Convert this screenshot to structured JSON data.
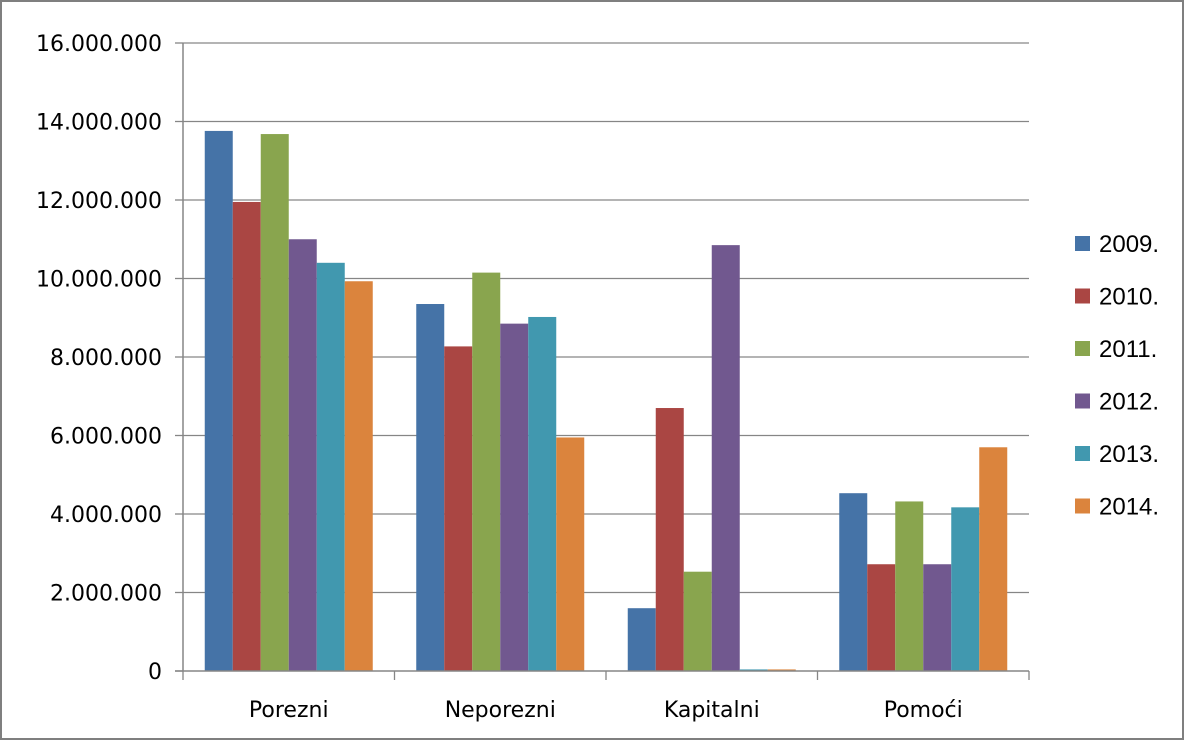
{
  "chart_data": {
    "type": "bar",
    "title": "",
    "xlabel": "",
    "ylabel": "",
    "categories": [
      "Porezni",
      "Neporezni",
      "Kapitalni",
      "Pomoći"
    ],
    "series": [
      {
        "name": "2009.",
        "color": "#4573a7",
        "values": [
          13760000,
          9350000,
          1600000,
          4530000
        ]
      },
      {
        "name": "2010.",
        "color": "#aa4643",
        "values": [
          11950000,
          8270000,
          6700000,
          2720000
        ]
      },
      {
        "name": "2011.",
        "color": "#89a54e",
        "values": [
          13680000,
          10150000,
          2530000,
          4320000
        ]
      },
      {
        "name": "2012.",
        "color": "#71588f",
        "values": [
          11000000,
          8850000,
          10850000,
          2720000
        ]
      },
      {
        "name": "2013.",
        "color": "#4198af",
        "values": [
          10400000,
          9020000,
          40000,
          4170000
        ]
      },
      {
        "name": "2014.",
        "color": "#db843d",
        "values": [
          9930000,
          5950000,
          40000,
          5700000
        ]
      }
    ],
    "ylim": [
      0,
      16000000
    ],
    "y_ticks": [
      0,
      2000000,
      4000000,
      6000000,
      8000000,
      10000000,
      12000000,
      14000000,
      16000000
    ],
    "y_tick_labels": [
      "0",
      "2.000.000",
      "4.000.000",
      "6.000.000",
      "8.000.000",
      "10.000.000",
      "12.000.000",
      "14.000.000",
      "16.000.000"
    ],
    "grid": true,
    "legend": "right"
  }
}
